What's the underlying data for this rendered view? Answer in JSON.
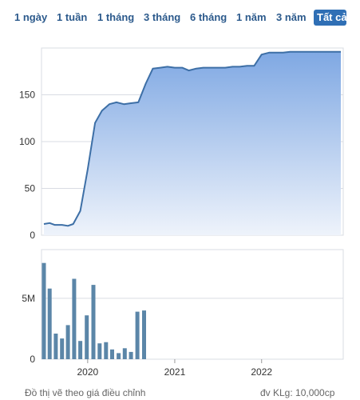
{
  "range_tabs": {
    "items": [
      "1 ngày",
      "1 tuần",
      "1 tháng",
      "3 tháng",
      "6 tháng",
      "1 năm",
      "3 năm",
      "Tất cả"
    ],
    "active_index": 7
  },
  "colors": {
    "line": "#3d6fa6",
    "area_top": "#7fa8e3",
    "area_bottom": "#eef3fb",
    "bar": "#5b86a8",
    "grid": "#d9dce3",
    "active_tab_bg": "#2f6fb5",
    "tab_text": "#2c5a8c"
  },
  "footer": {
    "left_note": "Đồ thị vẽ theo giá điều chỉnh",
    "right_note": "đv KLg: 10,000cp"
  },
  "chart_data": [
    {
      "type": "area",
      "x_range": [
        "2019-07-01",
        "2022-11-30"
      ],
      "ylim": [
        0,
        200
      ],
      "yticks": [
        0,
        50,
        100,
        150
      ],
      "grid": true,
      "points": [
        [
          "2019-07-01",
          12
        ],
        [
          "2019-07-25",
          13
        ],
        [
          "2019-08-15",
          11
        ],
        [
          "2019-09-15",
          11
        ],
        [
          "2019-10-10",
          10
        ],
        [
          "2019-11-01",
          12
        ],
        [
          "2019-12-01",
          26
        ],
        [
          "2020-01-01",
          70
        ],
        [
          "2020-02-01",
          120
        ],
        [
          "2020-03-01",
          133
        ],
        [
          "2020-04-01",
          140
        ],
        [
          "2020-05-01",
          142
        ],
        [
          "2020-06-01",
          140
        ],
        [
          "2020-07-01",
          141
        ],
        [
          "2020-08-01",
          142
        ],
        [
          "2020-09-01",
          162
        ],
        [
          "2020-10-01",
          178
        ],
        [
          "2020-11-01",
          179
        ],
        [
          "2020-12-01",
          180
        ],
        [
          "2021-01-01",
          179
        ],
        [
          "2021-02-01",
          179
        ],
        [
          "2021-03-01",
          176
        ],
        [
          "2021-04-01",
          178
        ],
        [
          "2021-05-01",
          179
        ],
        [
          "2021-06-01",
          179
        ],
        [
          "2021-07-01",
          179
        ],
        [
          "2021-08-01",
          179
        ],
        [
          "2021-09-01",
          180
        ],
        [
          "2021-10-01",
          180
        ],
        [
          "2021-11-01",
          181
        ],
        [
          "2021-12-01",
          181
        ],
        [
          "2022-01-01",
          193
        ],
        [
          "2022-02-01",
          195
        ],
        [
          "2022-03-01",
          195
        ],
        [
          "2022-04-01",
          195
        ],
        [
          "2022-05-01",
          196
        ],
        [
          "2022-06-01",
          196
        ],
        [
          "2022-07-01",
          196
        ],
        [
          "2022-08-01",
          196
        ],
        [
          "2022-09-01",
          196
        ],
        [
          "2022-10-01",
          196
        ],
        [
          "2022-11-30",
          196
        ]
      ]
    },
    {
      "type": "bar",
      "x_range": [
        "2019-07-01",
        "2022-11-30"
      ],
      "ylim": [
        0,
        9000000
      ],
      "yticks": [
        0,
        5000000
      ],
      "ytick_labels": [
        "0",
        "5M"
      ],
      "xticks": [
        "2020-01-01",
        "2021-01-01",
        "2022-01-01"
      ],
      "xtick_labels": [
        "2020",
        "2021",
        "2022"
      ],
      "grid": true,
      "bars": [
        [
          "2019-07-01",
          7900000
        ],
        [
          "2019-07-25",
          5800000
        ],
        [
          "2019-08-20",
          2100000
        ],
        [
          "2019-09-15",
          1700000
        ],
        [
          "2019-10-10",
          2800000
        ],
        [
          "2019-11-05",
          6600000
        ],
        [
          "2019-12-01",
          1500000
        ],
        [
          "2019-12-28",
          3600000
        ],
        [
          "2020-01-25",
          6100000
        ],
        [
          "2020-02-20",
          1300000
        ],
        [
          "2020-03-18",
          1400000
        ],
        [
          "2020-04-13",
          800000
        ],
        [
          "2020-05-10",
          500000
        ],
        [
          "2020-06-05",
          900000
        ],
        [
          "2020-07-01",
          600000
        ],
        [
          "2020-07-28",
          3900000
        ],
        [
          "2020-08-25",
          4000000
        ]
      ]
    }
  ]
}
